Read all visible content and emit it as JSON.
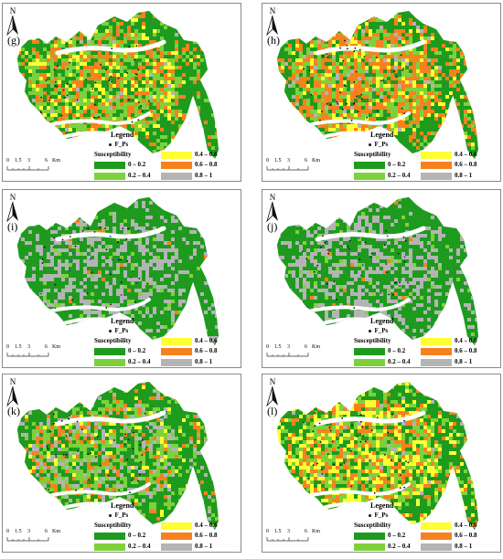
{
  "north_label": "N",
  "panels": [
    {
      "label": "(g)",
      "scheme": "mix"
    },
    {
      "label": "(h)",
      "scheme": "orange"
    },
    {
      "label": "(i)",
      "scheme": "gray"
    },
    {
      "label": "(j)",
      "scheme": "gray"
    },
    {
      "label": "(k)",
      "scheme": "mixgray"
    },
    {
      "label": "(l)",
      "scheme": "yellow"
    }
  ],
  "legend": {
    "title": "Legend",
    "point_label": "F_Ps",
    "susceptibility_title": "Susceptibility",
    "classes": [
      {
        "label": "0 – 0.2",
        "color": "#1e9b1e"
      },
      {
        "label": "0.2 – 0.4",
        "color": "#7dd23c"
      },
      {
        "label": "0.4 – 0.6",
        "color": "#ffff33"
      },
      {
        "label": "0.6 – 0.8",
        "color": "#f5821f"
      },
      {
        "label": "0.8 – 1",
        "color": "#b4b4b4"
      }
    ]
  },
  "scale_bar": {
    "ticks": [
      "0",
      "1.5",
      "3",
      "6"
    ],
    "unit": "Km"
  }
}
